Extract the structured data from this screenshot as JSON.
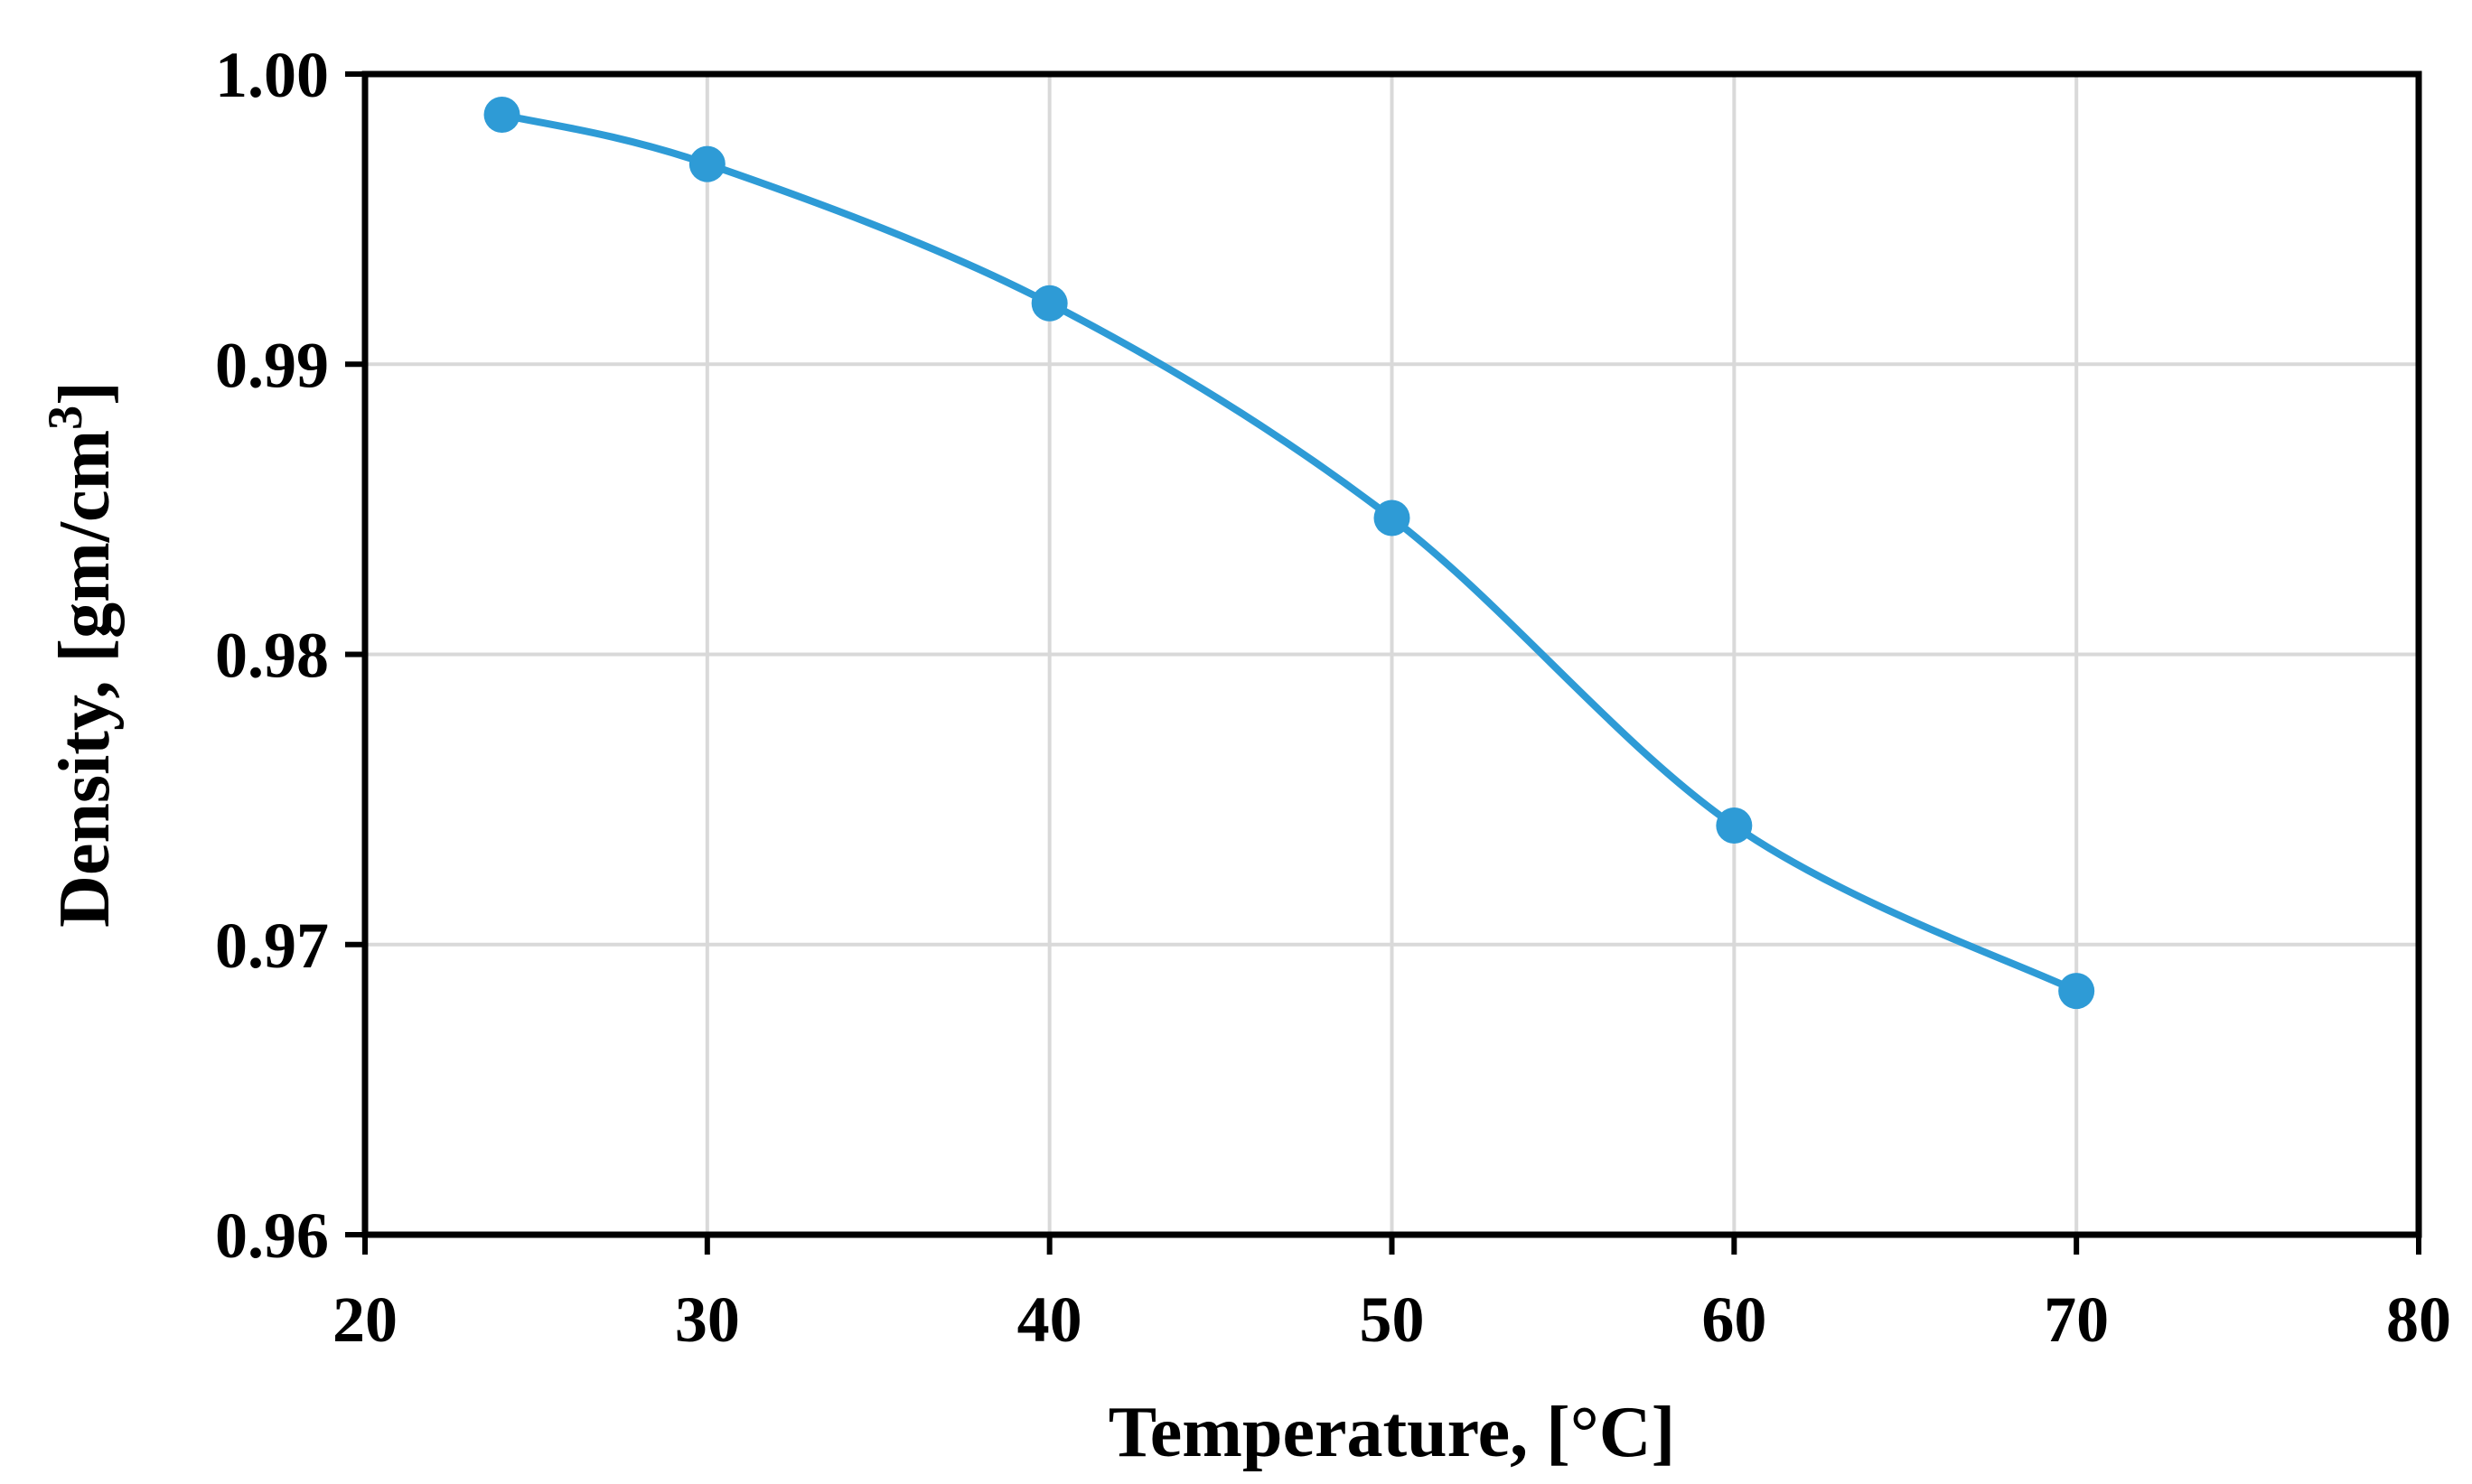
{
  "chart_data": {
    "type": "line",
    "title": "",
    "xlabel": "Temperature, [°C]",
    "ylabel": {
      "main": "Density, [gm/cm",
      "superscript": "3",
      "close": "]"
    },
    "xlim": [
      20,
      80
    ],
    "ylim": [
      0.96,
      1.0
    ],
    "x_ticks": [
      20,
      30,
      40,
      50,
      60,
      70,
      80
    ],
    "x_tick_labels": [
      "20",
      "30",
      "40",
      "50",
      "60",
      "70",
      "80"
    ],
    "y_ticks": [
      0.96,
      0.97,
      0.98,
      0.99,
      1.0
    ],
    "y_tick_labels": [
      "0.96",
      "0.97",
      "0.98",
      "0.99",
      "1.00"
    ],
    "grid": true,
    "smooth": true,
    "series": [
      {
        "x": [
          24,
          30,
          40,
          50,
          60,
          70
        ],
        "y": [
          0.9986,
          0.9969,
          0.9921,
          0.9847,
          0.9741,
          0.9684
        ],
        "color": "#2e9bd6",
        "marker": "circle"
      }
    ]
  }
}
